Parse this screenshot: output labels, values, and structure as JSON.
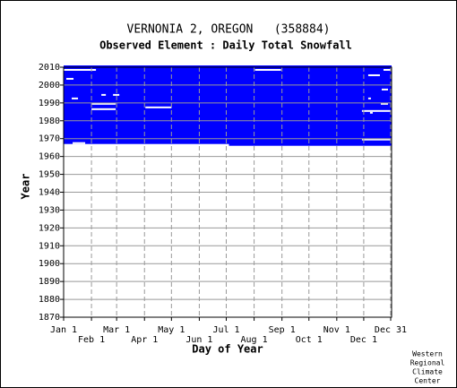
{
  "chart_data": {
    "type": "coverage",
    "title": "VERNONIA 2, OREGON   (358884)",
    "subtitle": "Observed Element : Daily Total Snowfall",
    "xlabel": "Day of Year",
    "ylabel": "Year",
    "footer": [
      "Western",
      "Regional",
      "Climate",
      "Center"
    ],
    "color": "#0000ff",
    "gap_color": "#ffffff",
    "grid": true,
    "xlim": [
      1,
      366
    ],
    "ylim": [
      1870,
      2010
    ],
    "xticks": [
      {
        "value": 1,
        "label": "Jan 1"
      },
      {
        "value": 32,
        "label": "Feb 1"
      },
      {
        "value": 60,
        "label": "Mar 1"
      },
      {
        "value": 91,
        "label": "Apr 1"
      },
      {
        "value": 121,
        "label": "May 1"
      },
      {
        "value": 152,
        "label": "Jun 1"
      },
      {
        "value": 182,
        "label": "Jul 1"
      },
      {
        "value": 213,
        "label": "Aug 1"
      },
      {
        "value": 244,
        "label": "Sep 1"
      },
      {
        "value": 274,
        "label": "Oct 1"
      },
      {
        "value": 305,
        "label": "Nov 1"
      },
      {
        "value": 335,
        "label": "Dec 1"
      },
      {
        "value": 365,
        "label": "Dec 31"
      }
    ],
    "yticks": [
      1870,
      1880,
      1890,
      1900,
      1910,
      1920,
      1930,
      1940,
      1950,
      1960,
      1970,
      1980,
      1990,
      2000,
      2010
    ],
    "blocks": [
      {
        "start_day": 1,
        "end_day": 185,
        "start_year": 1967,
        "end_year": 2011
      },
      {
        "start_day": 185,
        "end_day": 366,
        "start_year": 1966,
        "end_year": 2011
      }
    ],
    "gaps": [
      {
        "year": 2008,
        "start_day": 1,
        "end_day": 37
      },
      {
        "year": 2008,
        "start_day": 214,
        "end_day": 243
      },
      {
        "year": 2008,
        "start_day": 357,
        "end_day": 365
      },
      {
        "year": 2005,
        "start_day": 340,
        "end_day": 353
      },
      {
        "year": 2003,
        "start_day": 4,
        "end_day": 12
      },
      {
        "year": 1997,
        "start_day": 355,
        "end_day": 362
      },
      {
        "year": 1994,
        "start_day": 43,
        "end_day": 48
      },
      {
        "year": 1994,
        "start_day": 56,
        "end_day": 63
      },
      {
        "year": 1992,
        "start_day": 10,
        "end_day": 17
      },
      {
        "year": 1992,
        "start_day": 340,
        "end_day": 343
      },
      {
        "year": 1989,
        "start_day": 32,
        "end_day": 59
      },
      {
        "year": 1989,
        "start_day": 354,
        "end_day": 362
      },
      {
        "year": 1987,
        "start_day": 92,
        "end_day": 121
      },
      {
        "year": 1986,
        "start_day": 32,
        "end_day": 59
      },
      {
        "year": 1985,
        "start_day": 333,
        "end_day": 365
      },
      {
        "year": 1984,
        "start_day": 342,
        "end_day": 345
      },
      {
        "year": 1969,
        "start_day": 333,
        "end_day": 365
      },
      {
        "year": 1967,
        "start_day": 11,
        "end_day": 25
      }
    ]
  }
}
